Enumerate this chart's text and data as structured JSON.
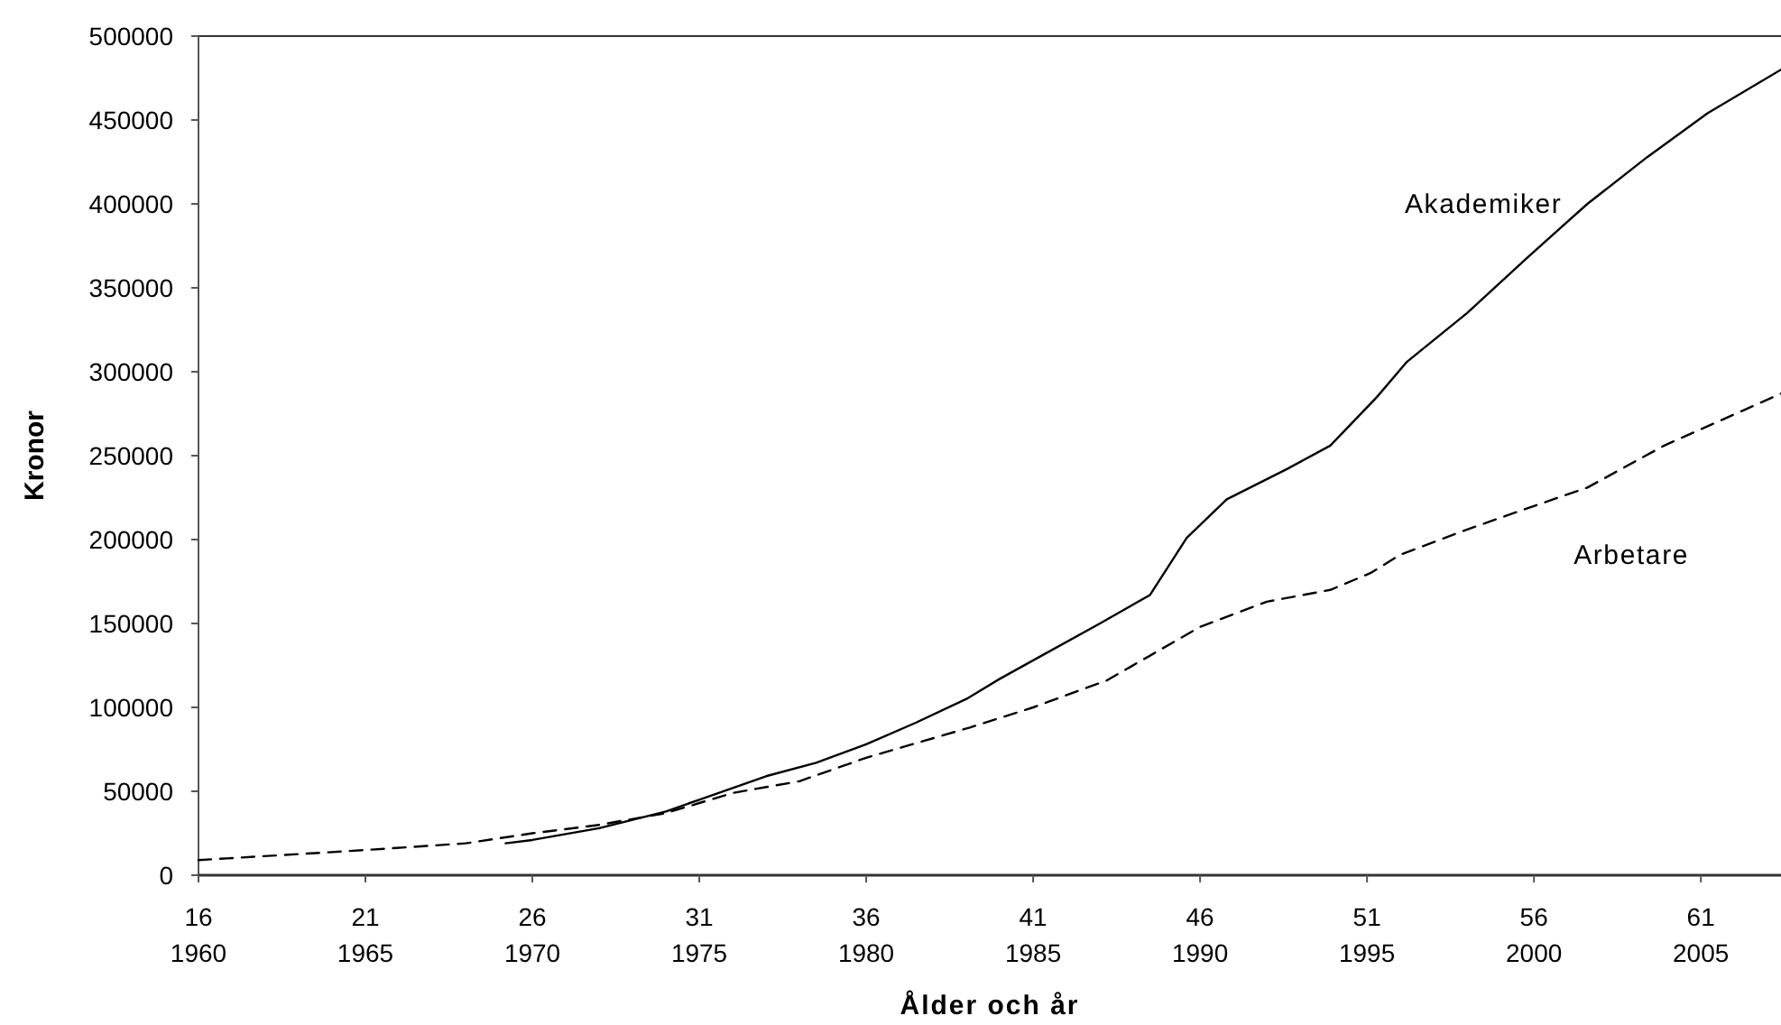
{
  "chart_data": {
    "type": "line",
    "xlabel": "Ålder och år",
    "ylabel": "Kronor",
    "xlim": [
      16,
      63.4
    ],
    "ylim": [
      0,
      500000
    ],
    "xticks": [
      16,
      21,
      26,
      31,
      36,
      41,
      46,
      51,
      56,
      61
    ],
    "x2lim": [
      1960,
      2007.4
    ],
    "x2ticks": [
      1960,
      1965,
      1970,
      1975,
      1980,
      1985,
      1990,
      1995,
      2000,
      2005
    ],
    "yticks": [
      0,
      50000,
      100000,
      150000,
      200000,
      250000,
      300000,
      350000,
      400000,
      450000,
      500000
    ],
    "grid": false,
    "marker": "none",
    "series": [
      {
        "name": "Akademiker",
        "color": "#000000",
        "line_style": "solid",
        "x": [
          25.2,
          26,
          28,
          30,
          31,
          32,
          33,
          34.5,
          36,
          37.5,
          39,
          40,
          41,
          43,
          44.5,
          45.6,
          46.8,
          48.6,
          49.9,
          51.3,
          52.2,
          54,
          55.8,
          57.6,
          59.4,
          61.2,
          63.4
        ],
        "values": [
          19000,
          21000,
          28000,
          38000,
          45000,
          52000,
          59000,
          67000,
          78000,
          91000,
          105000,
          117000,
          128000,
          150000,
          167000,
          201000,
          224000,
          242000,
          256000,
          285000,
          306000,
          335000,
          368000,
          400000,
          428000,
          454000,
          480000
        ]
      },
      {
        "name": "Arbetare",
        "color": "#000000",
        "line_style": "dashed",
        "x": [
          16,
          21,
          24,
          26,
          28,
          30,
          31,
          32,
          34,
          36,
          39.1,
          41,
          43.2,
          43.9,
          46,
          48,
          49.9,
          51.1,
          52,
          54,
          56,
          57.6,
          59.9,
          63.4
        ],
        "values": [
          9000,
          15000,
          19000,
          25000,
          30000,
          37000,
          43000,
          49000,
          56000,
          70000,
          88000,
          100000,
          116000,
          124000,
          148000,
          163000,
          170000,
          180000,
          191000,
          206000,
          220000,
          231000,
          256000,
          287000
        ]
      }
    ]
  }
}
